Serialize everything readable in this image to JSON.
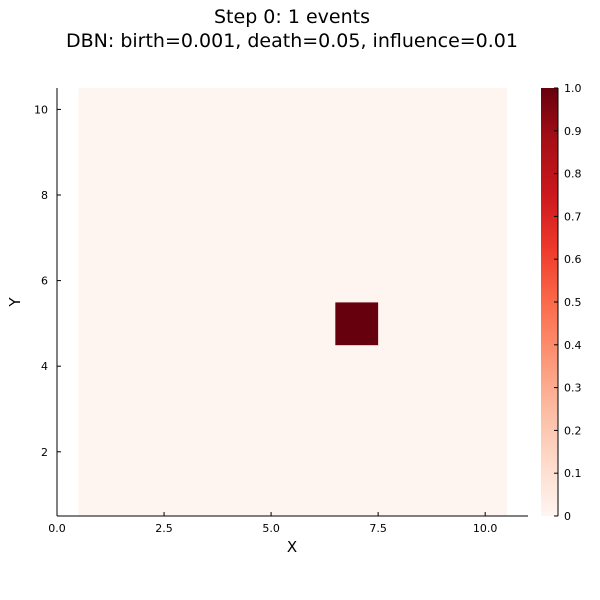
{
  "chart_data": {
    "type": "heatmap",
    "title": "Step 0: 1 events",
    "subtitle": "DBN: birth=0.001, death=0.05, influence=0.01",
    "xlabel": "X",
    "ylabel": "Y",
    "xlim": [
      0.0,
      11.0
    ],
    "ylim": [
      0.5,
      10.5
    ],
    "x_ticks": [
      0.0,
      2.5,
      5.0,
      7.5,
      10.0
    ],
    "x_tick_labels": [
      "0.0",
      "2.5",
      "5.0",
      "7.5",
      "10.0"
    ],
    "y_ticks": [
      2,
      4,
      6,
      8,
      10
    ],
    "y_tick_labels": [
      "2",
      "4",
      "6",
      "8",
      "10"
    ],
    "grid": false,
    "colormap": "Reds",
    "color_low": "#fff5f0",
    "color_high": "#67000d",
    "colorbar": {
      "range": [
        0,
        1
      ],
      "ticks": [
        0,
        0.1,
        0.2,
        0.3,
        0.4,
        0.5,
        0.6,
        0.7,
        0.8,
        0.9,
        1.0
      ],
      "tick_labels": [
        "0",
        "0.1",
        "0.2",
        "0.3",
        "0.4",
        "0.5",
        "0.6",
        "0.7",
        "0.8",
        "0.9",
        "1.0"
      ]
    },
    "x_values": [
      1,
      2,
      3,
      4,
      5,
      6,
      7,
      8,
      9,
      10
    ],
    "y_values": [
      1,
      2,
      3,
      4,
      5,
      6,
      7,
      8,
      9,
      10
    ],
    "z": [
      [
        0,
        0,
        0,
        0,
        0,
        0,
        0,
        0,
        0,
        0
      ],
      [
        0,
        0,
        0,
        0,
        0,
        0,
        0,
        0,
        0,
        0
      ],
      [
        0,
        0,
        0,
        0,
        0,
        0,
        0,
        0,
        0,
        0
      ],
      [
        0,
        0,
        0,
        0,
        0,
        0,
        0,
        0,
        0,
        0
      ],
      [
        0,
        0,
        0,
        0,
        0,
        0,
        1,
        0,
        0,
        0
      ],
      [
        0,
        0,
        0,
        0,
        0,
        0,
        0,
        0,
        0,
        0
      ],
      [
        0,
        0,
        0,
        0,
        0,
        0,
        0,
        0,
        0,
        0
      ],
      [
        0,
        0,
        0,
        0,
        0,
        0,
        0,
        0,
        0,
        0
      ],
      [
        0,
        0,
        0,
        0,
        0,
        0,
        0,
        0,
        0,
        0
      ],
      [
        0,
        0,
        0,
        0,
        0,
        0,
        0,
        0,
        0,
        0
      ]
    ]
  }
}
